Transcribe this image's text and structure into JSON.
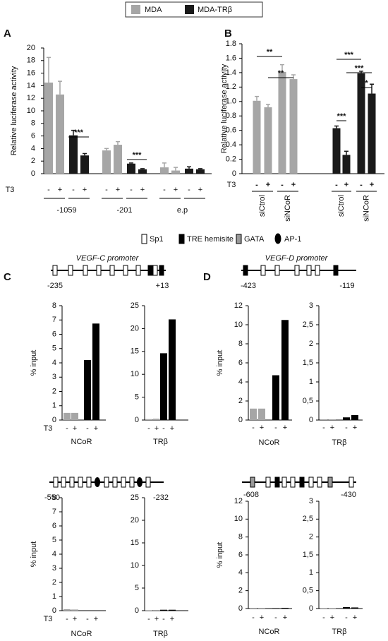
{
  "legend_note": null,
  "element_legend": [
    "Sp1",
    "TRE hemisite",
    "GATA",
    "AP-1"
  ],
  "promoters": [
    {
      "title": "VEGF-C promoter",
      "start": "-235",
      "end": "+13"
    },
    {
      "title": "VEGF-D promoter",
      "start": "-423",
      "end": "-119"
    },
    {
      "start": "-550",
      "end": "-232"
    },
    {
      "start": "-608",
      "end": "-430"
    }
  ],
  "chart_data": [
    {
      "type": "bar",
      "panel_label": "A",
      "ylabel": "Relative luciferase activity",
      "t3_label": "T3",
      "categories": [
        "-",
        "+",
        "-",
        "+",
        "-",
        "+",
        "-",
        "+",
        "-",
        "+",
        "-",
        "+"
      ],
      "groups": [
        "-1059",
        "-201",
        "e.p"
      ],
      "series": [
        {
          "name": "MDA",
          "color": "#a6a6a6",
          "values": [
            14.5,
            12.6,
            null,
            null,
            3.7,
            4.6,
            null,
            null,
            1.0,
            0.5,
            null,
            null
          ],
          "errors": [
            4.0,
            2.1,
            null,
            null,
            0.3,
            0.5,
            null,
            null,
            0.7,
            0.5,
            null,
            null
          ]
        },
        {
          "name": "MDA-TRβ",
          "color": "#1a1a1a",
          "values": [
            null,
            null,
            6.1,
            2.9,
            null,
            null,
            1.6,
            0.7,
            null,
            null,
            0.8,
            0.7
          ],
          "errors": [
            null,
            null,
            0.8,
            0.3,
            null,
            null,
            0.1,
            0.1,
            null,
            null,
            0.3,
            0.1
          ]
        }
      ],
      "ylim": [
        0,
        20
      ],
      "yticks": [
        0,
        2,
        4,
        6,
        8,
        10,
        12,
        14,
        16,
        18,
        20
      ],
      "annotations": [
        "***",
        "***"
      ]
    },
    {
      "type": "bar",
      "panel_label": "B",
      "ylabel": "Relative luciferase activity",
      "t3_label": "T3",
      "categories": [
        "-",
        "+",
        "-",
        "+",
        "-",
        "+",
        "-",
        "+"
      ],
      "groups": [
        "siCtrol",
        "siNCoR",
        "siCtrol",
        "siNCoR"
      ],
      "series": [
        {
          "name": "MDA",
          "color": "#a6a6a6",
          "values": [
            1.01,
            0.92,
            1.41,
            1.31,
            null,
            null,
            null,
            null
          ],
          "errors": [
            0.06,
            0.04,
            0.1,
            0.06,
            null,
            null,
            null,
            null
          ]
        },
        {
          "name": "MDA-TRβ",
          "color": "#1a1a1a",
          "values": [
            null,
            null,
            null,
            null,
            0.63,
            0.26,
            1.39,
            1.11
          ],
          "errors": [
            null,
            null,
            null,
            null,
            0.03,
            0.05,
            0.03,
            0.13
          ]
        }
      ],
      "ylim": [
        0,
        1.8
      ],
      "yticks": [
        0,
        0.2,
        0.4,
        0.6,
        0.8,
        {
          "value": 1,
          "label": "1.0"
        },
        1.2,
        1.4,
        1.6,
        1.8
      ],
      "annotations": [
        "**",
        "**",
        "***",
        "***",
        "*",
        "***"
      ]
    },
    {
      "type": "bar",
      "panel_label": "C",
      "ylabel": "% input",
      "t3_label": "T3",
      "xlabel": "NCoR",
      "categories": [
        "-",
        "+",
        "-",
        "+"
      ],
      "series": [
        {
          "name": "MDA",
          "color": "#a6a6a6",
          "values": [
            0.5,
            0.5,
            null,
            null
          ]
        },
        {
          "name": "MDA-TRβ",
          "color": "#000000",
          "values": [
            null,
            null,
            4.2,
            6.75
          ]
        }
      ],
      "ylim": [
        0,
        8
      ],
      "yticks": [
        0,
        1,
        2,
        3,
        4,
        5,
        6,
        7,
        8
      ]
    },
    {
      "type": "bar",
      "xlabel": "TRβ",
      "categories": [
        "-",
        "+",
        "-",
        "+"
      ],
      "series": [
        {
          "name": "MDA",
          "color": "#a6a6a6",
          "values": [
            0.2,
            0.3,
            null,
            null
          ]
        },
        {
          "name": "MDA-TRβ",
          "color": "#000000",
          "values": [
            null,
            null,
            14.6,
            22
          ]
        }
      ],
      "ylim": [
        0,
        25
      ],
      "yticks": [
        0,
        5,
        10,
        15,
        20,
        25
      ]
    },
    {
      "type": "bar",
      "panel_label": "D",
      "ylabel": "% input",
      "xlabel": "NCoR",
      "categories": [
        "-",
        "+",
        "-",
        "+"
      ],
      "series": [
        {
          "name": "MDA",
          "color": "#a6a6a6",
          "values": [
            1.2,
            1.2,
            null,
            null
          ]
        },
        {
          "name": "MDA-TRβ",
          "color": "#000000",
          "values": [
            null,
            null,
            4.7,
            10.5
          ]
        }
      ],
      "ylim": [
        0,
        12
      ],
      "yticks": [
        0,
        2,
        4,
        6,
        8,
        10,
        12
      ]
    },
    {
      "type": "bar",
      "xlabel": "TRβ",
      "categories": [
        "-",
        "+",
        "-",
        "+"
      ],
      "series": [
        {
          "name": "MDA",
          "color": "#a6a6a6",
          "values": [
            0.02,
            0.02,
            null,
            null
          ]
        },
        {
          "name": "MDA-TRβ",
          "color": "#000000",
          "values": [
            null,
            null,
            0.07,
            0.13
          ]
        }
      ],
      "ylim": [
        0,
        3
      ],
      "yticks": [
        0,
        {
          "value": 0.5,
          "label": "0,5"
        },
        1,
        {
          "value": 1.5,
          "label": "1,5"
        },
        2,
        {
          "value": 2.5,
          "label": "2,5"
        },
        3
      ]
    },
    {
      "type": "bar",
      "ylabel": "% input",
      "t3_label": "T3",
      "xlabel": "NCoR",
      "categories": [
        "-",
        "+",
        "-",
        "+"
      ],
      "series": [
        {
          "name": "MDA",
          "color": "#a6a6a6",
          "values": [
            0.1,
            0.08,
            null,
            null
          ]
        },
        {
          "name": "MDA-TRβ",
          "color": "#000000",
          "values": [
            null,
            null,
            0.02,
            0.02
          ]
        }
      ],
      "ylim": [
        0,
        8
      ],
      "yticks": [
        0,
        1,
        2,
        3,
        4,
        5,
        6,
        7,
        8
      ]
    },
    {
      "type": "bar",
      "xlabel": "TRβ",
      "categories": [
        "-",
        "+",
        "-",
        "+"
      ],
      "series": [
        {
          "name": "MDA",
          "color": "#a6a6a6",
          "values": [
            0.1,
            0.15,
            null,
            null
          ]
        },
        {
          "name": "MDA-TRβ",
          "color": "#000000",
          "values": [
            null,
            null,
            0.2,
            0.2
          ]
        }
      ],
      "ylim": [
        0,
        25
      ],
      "yticks": [
        0,
        5,
        10,
        15,
        20,
        25
      ]
    },
    {
      "type": "bar",
      "ylabel": "% input",
      "xlabel": "NCoR",
      "categories": [
        "-",
        "+",
        "-",
        "+"
      ],
      "series": [
        {
          "name": "MDA",
          "color": "#a6a6a6",
          "values": [
            0.03,
            0.03,
            null,
            null
          ]
        },
        {
          "name": "MDA-TRβ",
          "color": "#000000",
          "values": [
            null,
            null,
            0.05,
            0.08
          ]
        }
      ],
      "ylim": [
        0,
        12
      ],
      "yticks": [
        0,
        2,
        4,
        6,
        8,
        10,
        12
      ]
    },
    {
      "type": "bar",
      "xlabel": "TRβ",
      "categories": [
        "-",
        "+",
        "-",
        "+"
      ],
      "series": [
        {
          "name": "MDA",
          "color": "#a6a6a6",
          "values": [
            0.01,
            0.01,
            null,
            null
          ]
        },
        {
          "name": "MDA-TRβ",
          "color": "#000000",
          "values": [
            null,
            null,
            0.04,
            0.03
          ]
        }
      ],
      "ylim": [
        0,
        3
      ],
      "yticks": [
        0,
        {
          "value": 0.5,
          "label": "0,5"
        },
        1,
        {
          "value": 1.5,
          "label": "1,5"
        },
        2,
        {
          "value": 2.5,
          "label": "2,5"
        },
        3
      ]
    }
  ]
}
